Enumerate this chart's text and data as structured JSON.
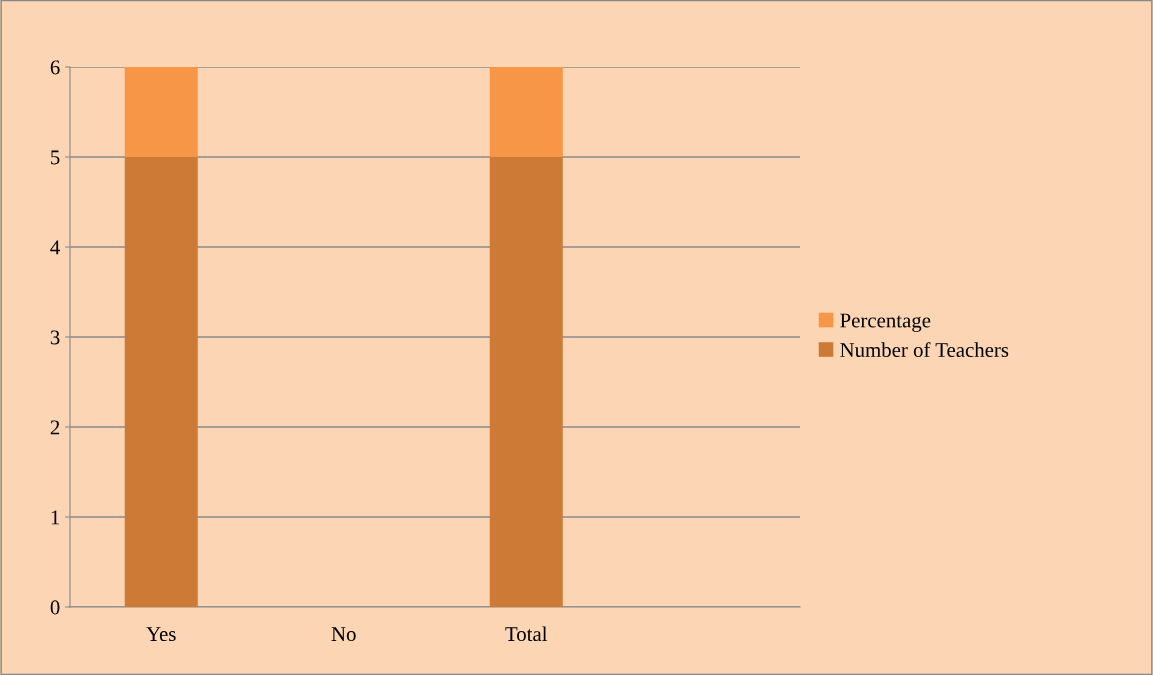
{
  "chart_data": {
    "type": "bar",
    "stacked": true,
    "categories": [
      "Yes",
      "No",
      "Total",
      null
    ],
    "series": [
      {
        "name": "Number of Teachers",
        "color": "#cc7a35",
        "values": [
          5,
          0,
          5,
          null
        ]
      },
      {
        "name": "Percentage",
        "color": "#f79646",
        "values": [
          1,
          0,
          1,
          null
        ]
      }
    ],
    "ylim": [
      0,
      6
    ],
    "yticks": [
      0,
      1,
      2,
      3,
      4,
      5,
      6
    ],
    "grid": "y",
    "legend": "right"
  }
}
